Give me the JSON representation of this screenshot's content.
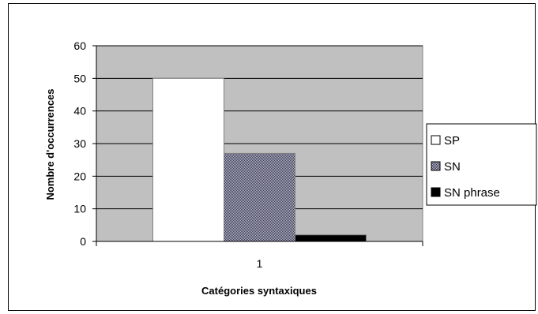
{
  "chart_data": {
    "type": "bar",
    "categories": [
      "1"
    ],
    "series": [
      {
        "name": "SP",
        "values": [
          50
        ],
        "color": "#ffffff",
        "pattern": "none"
      },
      {
        "name": "SN",
        "values": [
          27
        ],
        "color": "#8a8a9a",
        "pattern": "checker"
      },
      {
        "name": "SN phrase",
        "values": [
          2
        ],
        "color": "#000000",
        "pattern": "none"
      }
    ],
    "title": "",
    "xlabel": "Catégories syntaxiques",
    "ylabel": "Nombre d'occurrences",
    "ylim": [
      0,
      60
    ],
    "yticks": [
      0,
      10,
      20,
      30,
      40,
      50,
      60
    ],
    "grid": true,
    "plot_background": "#c0c0c0",
    "legend_position": "right"
  }
}
